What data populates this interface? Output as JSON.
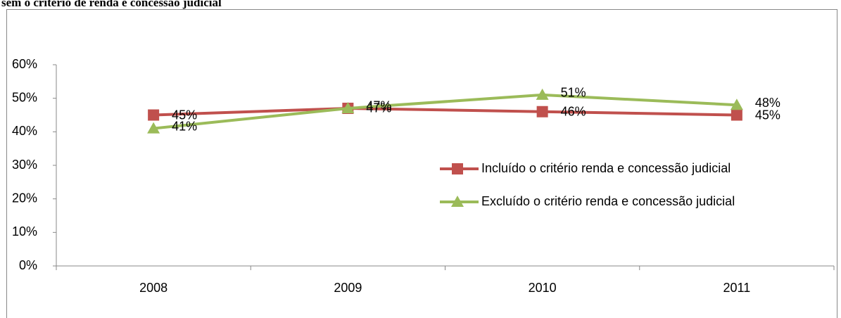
{
  "chart_data": {
    "type": "line",
    "title": "sem o critério de renda e concessão judicial",
    "categories": [
      "2008",
      "2009",
      "2010",
      "2011"
    ],
    "series": [
      {
        "name": "Incluído o critério renda e concessão judicial",
        "color": "#c0504d",
        "marker": "square",
        "values": [
          45,
          47,
          46,
          45
        ],
        "value_labels": [
          "45%",
          "47%",
          "46%",
          "45%"
        ]
      },
      {
        "name": "Excluído o critério renda e concessão judicial",
        "color": "#9bbb59",
        "marker": "triangle",
        "values": [
          41,
          47,
          51,
          48
        ],
        "value_labels": [
          "41%",
          "47%",
          "51%",
          "48%"
        ]
      }
    ],
    "ylim": [
      0,
      60
    ],
    "yticks": [
      {
        "value": 0,
        "label": "0%"
      },
      {
        "value": 10,
        "label": "10%"
      },
      {
        "value": 20,
        "label": "20%"
      },
      {
        "value": 30,
        "label": "30%"
      },
      {
        "value": 40,
        "label": "40%"
      },
      {
        "value": 50,
        "label": "50%"
      },
      {
        "value": 60,
        "label": "60%"
      }
    ],
    "grid": false,
    "legend": "right"
  }
}
